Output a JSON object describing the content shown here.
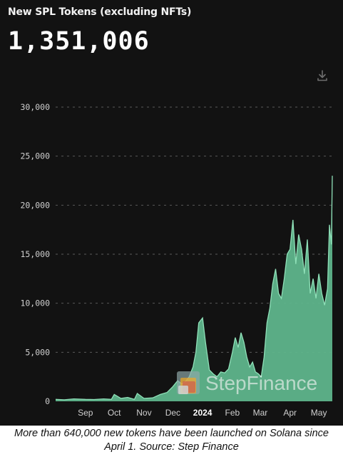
{
  "header": {
    "title": "New SPL Tokens (excluding NFTs)",
    "total": "1,351,006"
  },
  "icons": {
    "download": "download-icon"
  },
  "watermark": {
    "text": "StepFinance"
  },
  "caption": {
    "line1": "More than 640,000 new tokens have been launched on Solana since",
    "line2": "April 1. Source: Step Finance"
  },
  "colors": {
    "background": "#121212",
    "area_fill": "#5fb58c",
    "area_line": "#8fe0b8",
    "grid": "#5a5a5a",
    "tick_text": "#cfcfcf"
  },
  "chart_data": {
    "type": "area",
    "title": "New SPL Tokens (excluding NFTs)",
    "xlabel": "",
    "ylabel": "",
    "ylim": [
      0,
      30000
    ],
    "yticks": [
      0,
      5000,
      10000,
      15000,
      20000,
      25000,
      30000
    ],
    "ytick_labels": [
      "0",
      "5,000",
      "10,000",
      "15,000",
      "20,000",
      "25,000",
      "30,000"
    ],
    "xticks": [
      {
        "label": "Sep",
        "date": "2023-09-01"
      },
      {
        "label": "Oct",
        "date": "2023-10-01"
      },
      {
        "label": "Nov",
        "date": "2023-11-01"
      },
      {
        "label": "Dec",
        "date": "2023-12-01"
      },
      {
        "label": "2024",
        "date": "2024-01-01"
      },
      {
        "label": "Feb",
        "date": "2024-02-01"
      },
      {
        "label": "Mar",
        "date": "2024-03-01"
      },
      {
        "label": "Apr",
        "date": "2024-04-01"
      },
      {
        "label": "May",
        "date": "2024-05-01"
      }
    ],
    "grid": true,
    "legend": "none",
    "x": [
      "2023-08-01",
      "2023-08-10",
      "2023-08-20",
      "2023-09-01",
      "2023-09-10",
      "2023-09-20",
      "2023-09-28",
      "2023-10-01",
      "2023-10-08",
      "2023-10-15",
      "2023-10-22",
      "2023-10-25",
      "2023-11-01",
      "2023-11-10",
      "2023-11-18",
      "2023-11-25",
      "2023-12-01",
      "2023-12-06",
      "2023-12-10",
      "2023-12-14",
      "2023-12-18",
      "2023-12-22",
      "2023-12-25",
      "2023-12-28",
      "2024-01-01",
      "2024-01-04",
      "2024-01-08",
      "2024-01-12",
      "2024-01-16",
      "2024-01-20",
      "2024-01-24",
      "2024-01-28",
      "2024-02-01",
      "2024-02-04",
      "2024-02-07",
      "2024-02-10",
      "2024-02-13",
      "2024-02-16",
      "2024-02-19",
      "2024-02-22",
      "2024-02-25",
      "2024-02-28",
      "2024-03-02",
      "2024-03-05",
      "2024-03-08",
      "2024-03-11",
      "2024-03-14",
      "2024-03-17",
      "2024-03-20",
      "2024-03-23",
      "2024-03-26",
      "2024-03-29",
      "2024-04-01",
      "2024-04-04",
      "2024-04-07",
      "2024-04-10",
      "2024-04-13",
      "2024-04-16",
      "2024-04-19",
      "2024-04-22",
      "2024-04-25",
      "2024-04-28",
      "2024-05-01",
      "2024-05-04",
      "2024-05-07",
      "2024-05-10",
      "2024-05-12",
      "2024-05-14",
      "2024-05-15"
    ],
    "values": [
      200,
      150,
      250,
      200,
      180,
      250,
      200,
      700,
      300,
      400,
      200,
      800,
      300,
      350,
      700,
      900,
      1500,
      2100,
      1800,
      2000,
      2500,
      3500,
      5000,
      8000,
      8500,
      6000,
      3200,
      2800,
      2500,
      3000,
      2900,
      3300,
      5000,
      6500,
      5500,
      7000,
      6000,
      4500,
      3500,
      4000,
      3000,
      2800,
      2500,
      4500,
      8000,
      9500,
      12000,
      13500,
      11000,
      10500,
      12500,
      15000,
      15500,
      18500,
      14000,
      17000,
      15500,
      13000,
      16500,
      11000,
      12500,
      10500,
      13000,
      11000,
      9800,
      11500,
      18000,
      16000,
      23000
    ]
  }
}
